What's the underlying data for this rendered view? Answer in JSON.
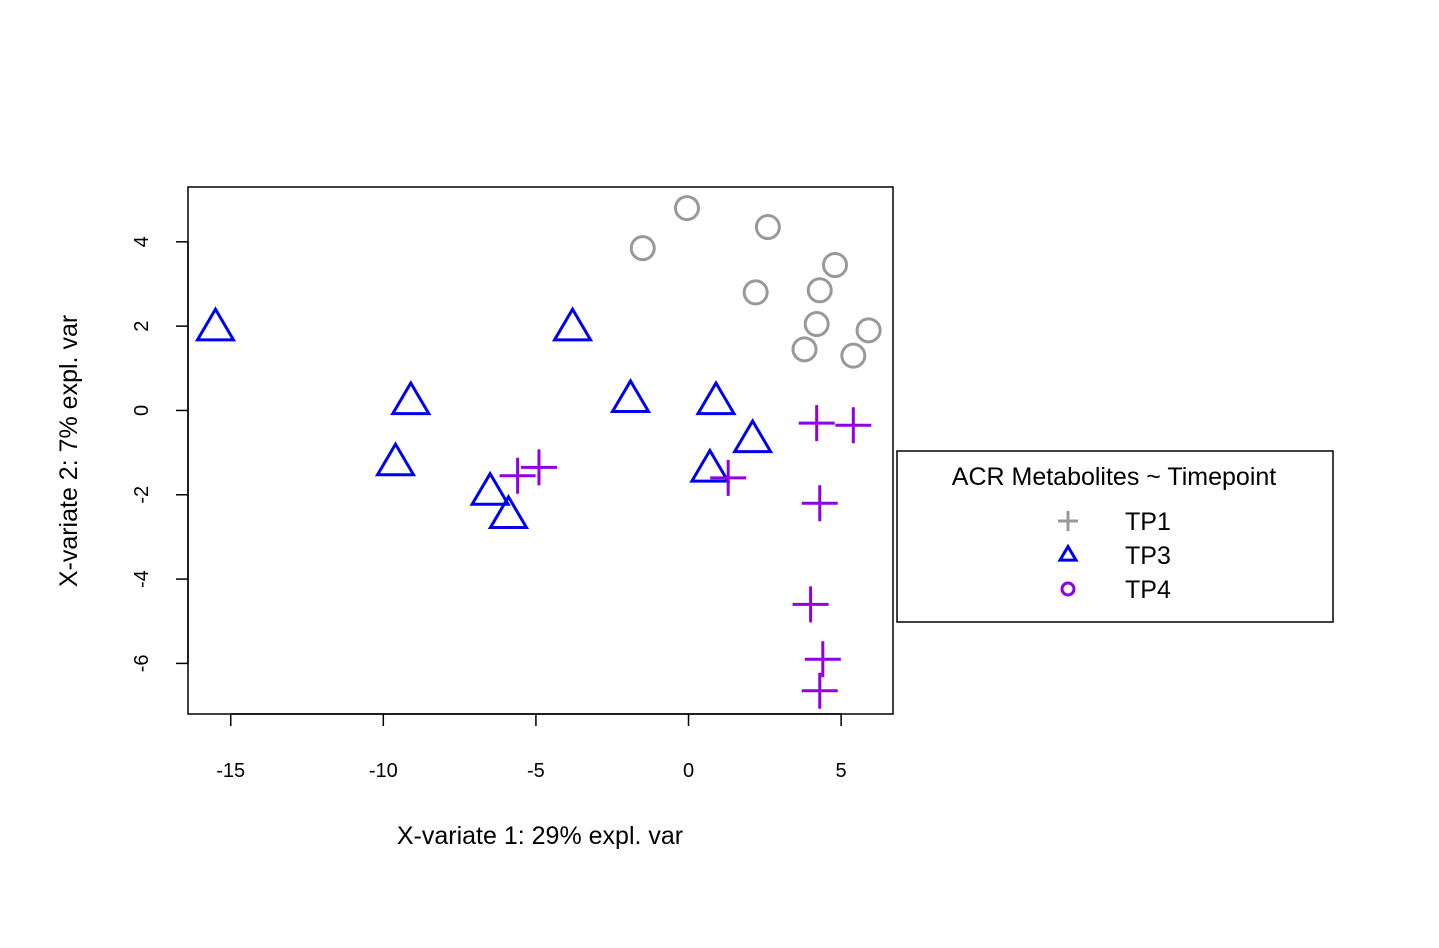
{
  "chart_data": {
    "type": "scatter",
    "title": "",
    "xlabel": "X-variate 1: 29% expl. var",
    "ylabel": "X-variate 2: 7% expl. var",
    "xlim": [
      -16.4,
      6.7
    ],
    "ylim": [
      -7.2,
      5.3
    ],
    "x_ticks": [
      -15,
      -10,
      -5,
      0,
      5
    ],
    "x_tick_labels": [
      "-15",
      "-10",
      "-5",
      "0",
      "5"
    ],
    "y_ticks": [
      -6,
      -4,
      -2,
      0,
      2,
      4
    ],
    "y_tick_labels": [
      "-6",
      "-4",
      "-2",
      "0",
      "2",
      "4"
    ],
    "grid": false,
    "legend": {
      "title": "ACR Metabolites ~ Timepoint",
      "placement": "right",
      "entries": [
        {
          "label": "TP1",
          "symbol": "plus",
          "color": "#999999"
        },
        {
          "label": "TP3",
          "symbol": "triangle",
          "color": "#0000ee"
        },
        {
          "label": "TP4",
          "symbol": "circle",
          "color": "#8f00e6"
        }
      ]
    },
    "series": [
      {
        "symbol": "circle",
        "color": "#999999",
        "points": [
          {
            "x": -0.05,
            "y": 4.8
          },
          {
            "x": -1.5,
            "y": 3.85
          },
          {
            "x": 2.6,
            "y": 4.35
          },
          {
            "x": 4.8,
            "y": 3.45
          },
          {
            "x": 2.2,
            "y": 2.8
          },
          {
            "x": 4.3,
            "y": 2.85
          },
          {
            "x": 4.2,
            "y": 2.05
          },
          {
            "x": 5.9,
            "y": 1.9
          },
          {
            "x": 3.8,
            "y": 1.45
          },
          {
            "x": 5.4,
            "y": 1.3
          }
        ]
      },
      {
        "symbol": "triangle",
        "color": "#0000ee",
        "points": [
          {
            "x": -15.5,
            "y": 1.95
          },
          {
            "x": -3.8,
            "y": 1.95
          },
          {
            "x": -9.1,
            "y": 0.2
          },
          {
            "x": -1.9,
            "y": 0.25
          },
          {
            "x": 0.9,
            "y": 0.2
          },
          {
            "x": 2.1,
            "y": -0.7
          },
          {
            "x": -9.6,
            "y": -1.25
          },
          {
            "x": 0.7,
            "y": -1.4
          },
          {
            "x": -6.5,
            "y": -1.95
          },
          {
            "x": -5.9,
            "y": -2.5
          }
        ]
      },
      {
        "symbol": "plus",
        "color": "#8f00e6",
        "points": [
          {
            "x": 4.2,
            "y": -0.3
          },
          {
            "x": 5.4,
            "y": -0.35
          },
          {
            "x": -5.6,
            "y": -1.55
          },
          {
            "x": -4.9,
            "y": -1.35
          },
          {
            "x": 1.3,
            "y": -1.6
          },
          {
            "x": 4.3,
            "y": -2.2
          },
          {
            "x": 4.0,
            "y": -4.6
          },
          {
            "x": 4.4,
            "y": -5.9
          },
          {
            "x": 4.3,
            "y": -6.65
          }
        ]
      }
    ]
  }
}
